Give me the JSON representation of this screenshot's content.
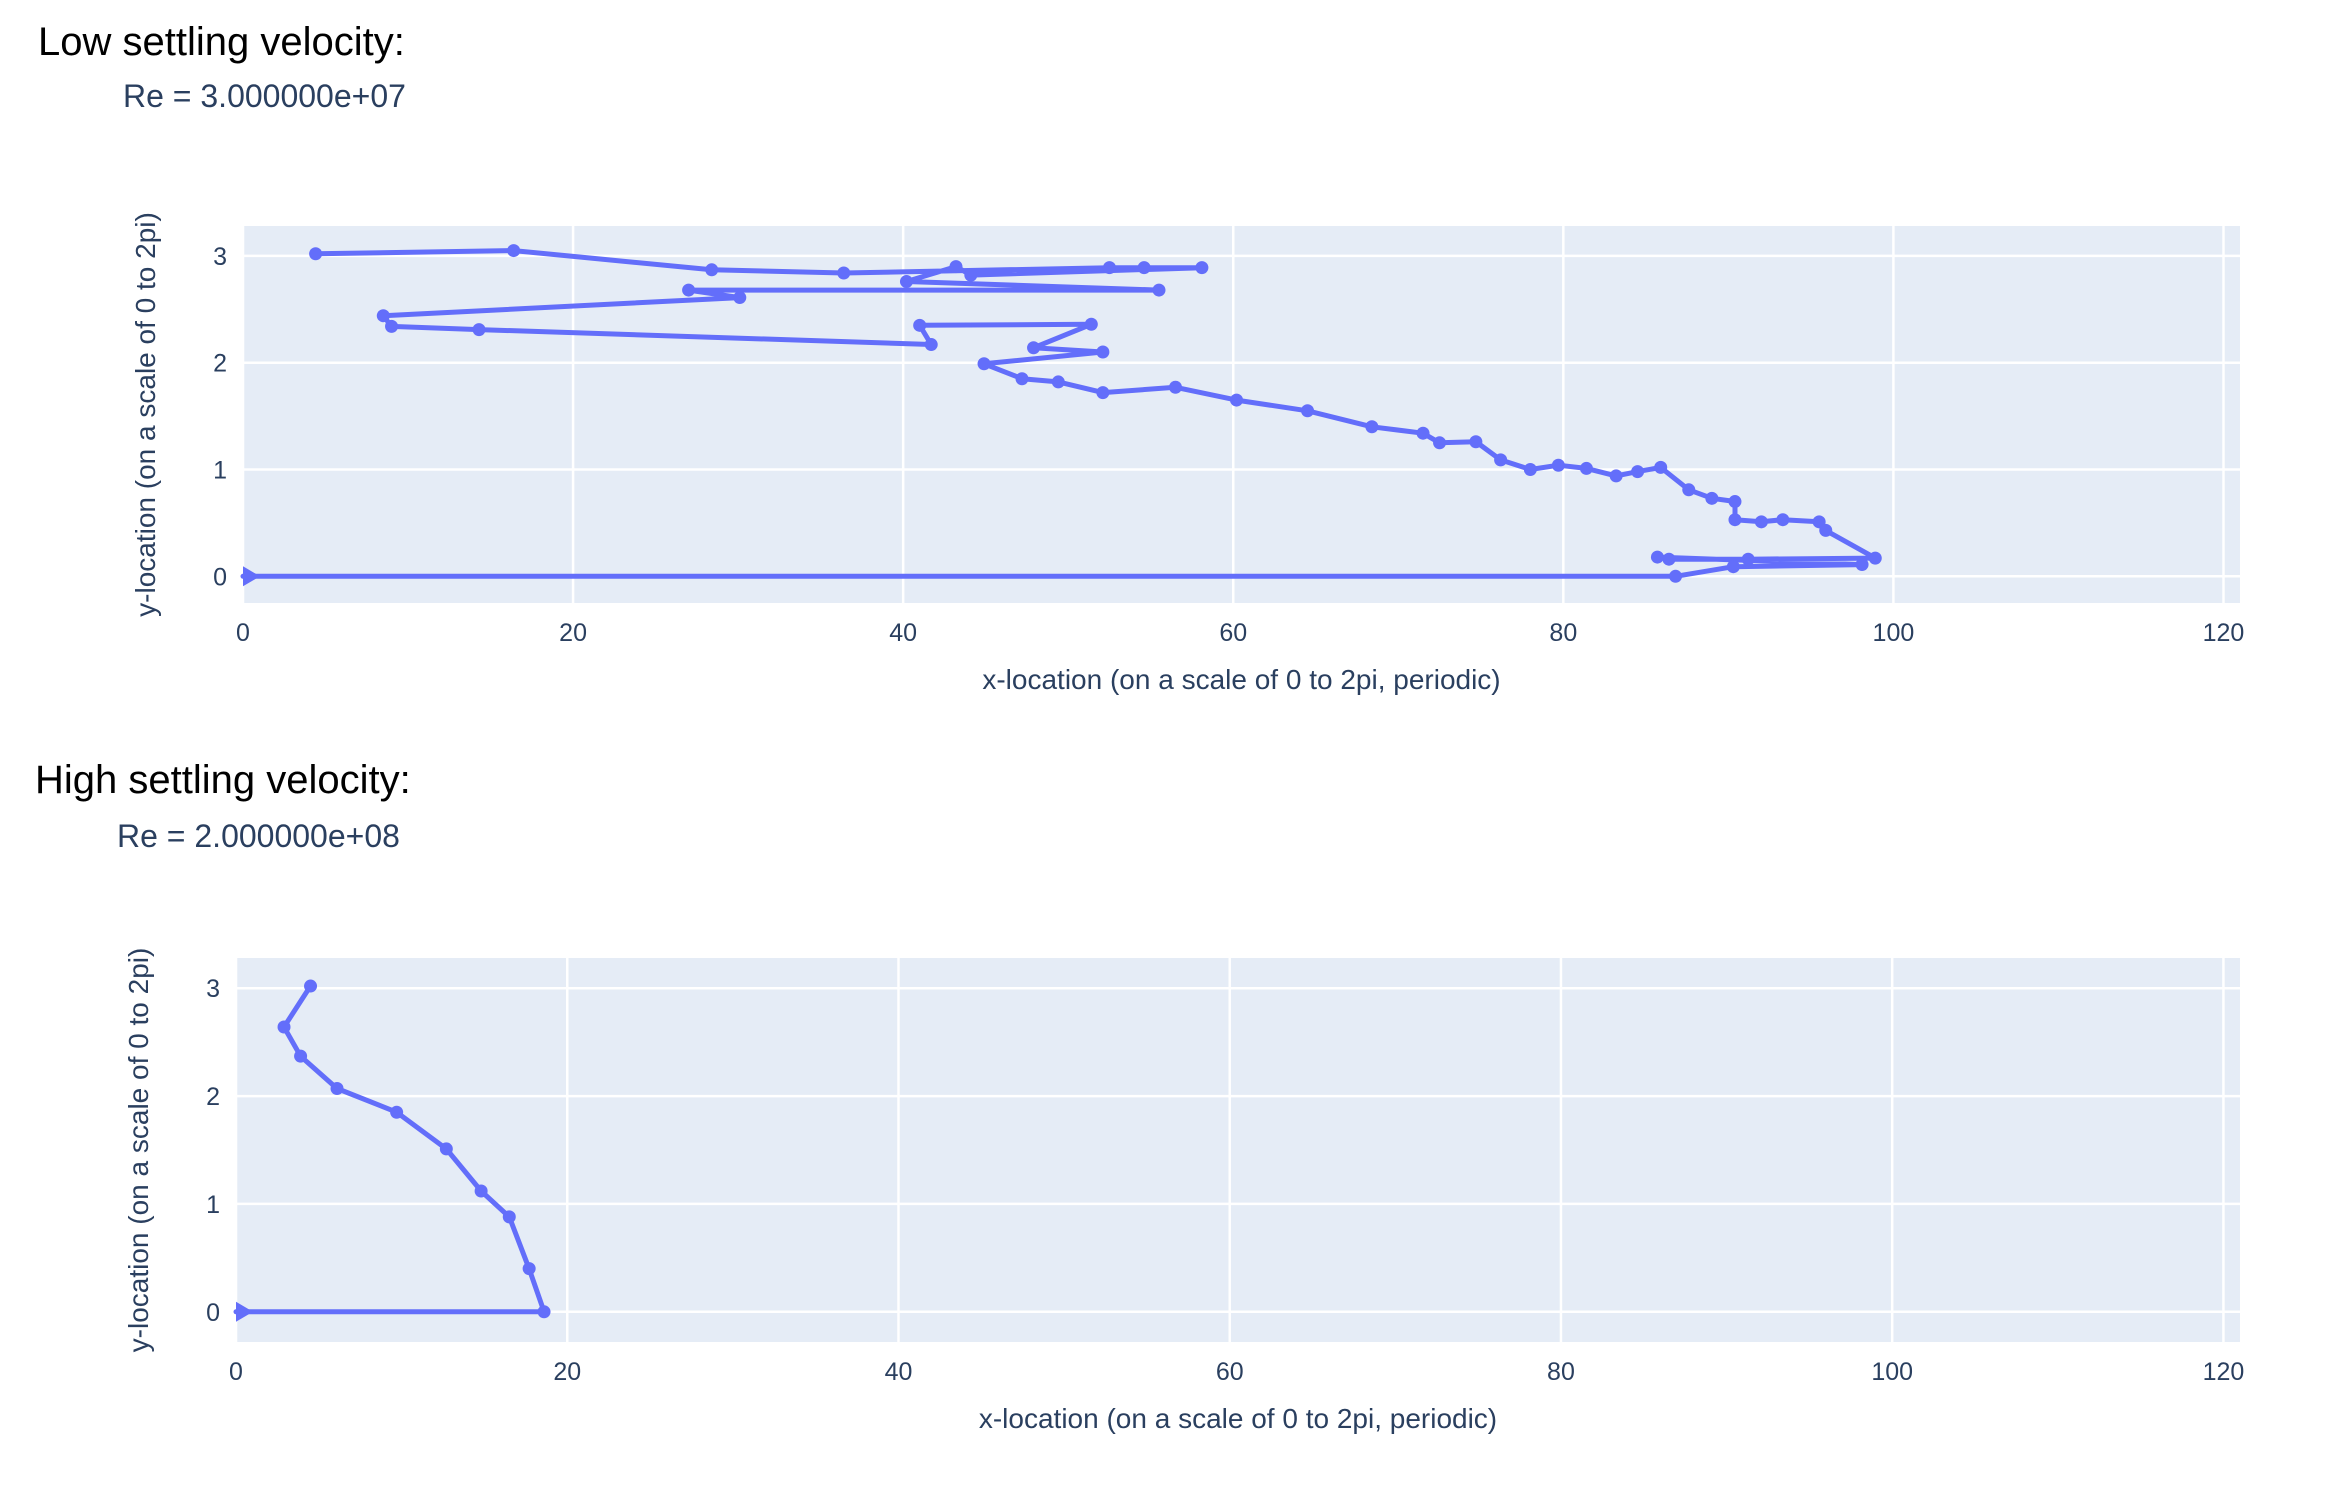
{
  "headings": {
    "low": "Low settling velocity:",
    "high": "High settling velocity:"
  },
  "colors": {
    "plot_bg": "#e5ecf6",
    "grid": "#ffffff",
    "line": "#636efa",
    "tick_text": "#2a3f5f",
    "heading_text": "#000000"
  },
  "chart_data": [
    {
      "type": "line",
      "title": "Re = 3.000000e+07",
      "xlabel": "x-location (on a scale of 0 to 2pi, periodic)",
      "ylabel": "y-location (on a scale of 0 to 2pi)",
      "xticks": [
        0,
        20,
        40,
        60,
        80,
        100,
        120
      ],
      "yticks": [
        0,
        1,
        2,
        3
      ],
      "xlim": [
        0,
        121
      ],
      "ylim": [
        -0.25,
        3.28
      ],
      "grid": true,
      "legend": "none",
      "line_color": "#636efa",
      "marker": "circle",
      "end_marker": "right-triangle-at-origin",
      "points": [
        [
          4.4,
          3.02
        ],
        [
          16.4,
          3.05
        ],
        [
          28.4,
          2.87
        ],
        [
          36.4,
          2.84
        ],
        [
          52.5,
          2.89
        ],
        [
          54.6,
          2.89
        ],
        [
          58.1,
          2.89
        ],
        [
          44.1,
          2.82
        ],
        [
          43.2,
          2.9
        ],
        [
          40.2,
          2.76
        ],
        [
          55.5,
          2.68
        ],
        [
          27.0,
          2.68
        ],
        [
          30.1,
          2.61
        ],
        [
          8.5,
          2.44
        ],
        [
          9.0,
          2.34
        ],
        [
          14.3,
          2.31
        ],
        [
          41.7,
          2.17
        ],
        [
          41.0,
          2.35
        ],
        [
          51.4,
          2.36
        ],
        [
          47.9,
          2.14
        ],
        [
          52.1,
          2.1
        ],
        [
          44.9,
          1.99
        ],
        [
          47.2,
          1.85
        ],
        [
          49.4,
          1.82
        ],
        [
          52.1,
          1.72
        ],
        [
          56.5,
          1.77
        ],
        [
          60.2,
          1.65
        ],
        [
          64.5,
          1.55
        ],
        [
          68.4,
          1.4
        ],
        [
          71.5,
          1.34
        ],
        [
          72.5,
          1.25
        ],
        [
          74.7,
          1.26
        ],
        [
          76.2,
          1.09
        ],
        [
          78.0,
          1.0
        ],
        [
          79.7,
          1.04
        ],
        [
          81.4,
          1.01
        ],
        [
          83.2,
          0.94
        ],
        [
          84.5,
          0.98
        ],
        [
          85.9,
          1.02
        ],
        [
          87.6,
          0.81
        ],
        [
          89.0,
          0.73
        ],
        [
          90.4,
          0.7
        ],
        [
          90.4,
          0.53
        ],
        [
          92.0,
          0.51
        ],
        [
          93.3,
          0.53
        ],
        [
          95.5,
          0.51
        ],
        [
          95.9,
          0.43
        ],
        [
          98.9,
          0.17
        ],
        [
          91.2,
          0.16
        ],
        [
          86.4,
          0.16
        ],
        [
          85.7,
          0.18
        ],
        [
          98.1,
          0.11
        ],
        [
          90.3,
          0.09
        ],
        [
          86.8,
          0.0
        ],
        [
          0.0,
          0.0
        ]
      ]
    },
    {
      "type": "line",
      "title": "Re = 2.000000e+08",
      "xlabel": "x-location (on a scale of 0 to 2pi, periodic)",
      "ylabel": "y-location (on a scale of 0 to 2pi)",
      "xticks": [
        0,
        20,
        40,
        60,
        80,
        100,
        120
      ],
      "yticks": [
        0,
        1,
        2,
        3
      ],
      "xlim": [
        0,
        121
      ],
      "ylim": [
        -0.28,
        3.28
      ],
      "grid": true,
      "legend": "none",
      "line_color": "#636efa",
      "marker": "circle",
      "end_marker": "right-triangle-at-origin",
      "points": [
        [
          4.5,
          3.02
        ],
        [
          2.9,
          2.64
        ],
        [
          3.9,
          2.37
        ],
        [
          6.1,
          2.07
        ],
        [
          9.7,
          1.85
        ],
        [
          12.7,
          1.51
        ],
        [
          14.8,
          1.12
        ],
        [
          16.5,
          0.88
        ],
        [
          17.7,
          0.4
        ],
        [
          18.6,
          0.0
        ],
        [
          0.0,
          0.0
        ]
      ]
    }
  ]
}
